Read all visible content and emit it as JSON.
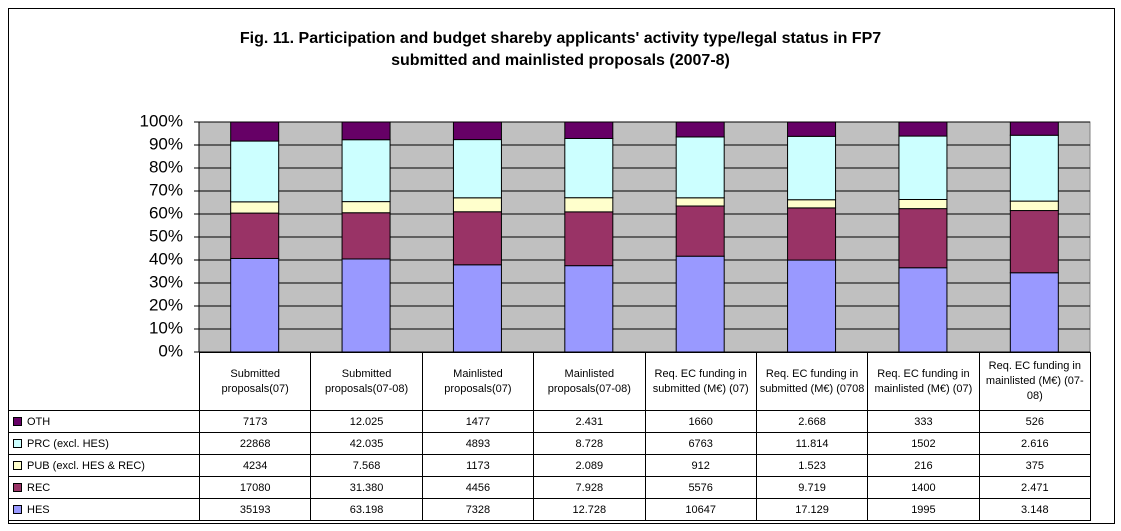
{
  "chart_data": {
    "type": "bar",
    "stack": "percent",
    "title": [
      "Fig. 11. Participation and budget shareby applicants' activity type/legal status in FP7",
      "submitted and mainlisted proposals (2007-8)"
    ],
    "categories": [
      "Submitted proposals(07)",
      "Submitted proposals(07-08)",
      "Mainlisted proposals(07)",
      "Mainlisted proposals(07-08)",
      "Req. EC funding in submitted (M€) (07)",
      "Req. EC funding in submitted (M€) (0708",
      "Req. EC funding in mainlisted (M€) (07)",
      "Req. EC funding in mainlisted (M€) (07-08)"
    ],
    "series": [
      {
        "name": "OTH",
        "color": "#660066",
        "values": [
          7173,
          12025,
          1477,
          2431,
          1660,
          2668,
          333,
          526
        ],
        "value_labels": [
          "7173",
          "12.025",
          "1477",
          "2.431",
          "1660",
          "2.668",
          "333",
          "526"
        ]
      },
      {
        "name": "PRC (excl. HES)",
        "color": "#ccffff",
        "values": [
          22868,
          42035,
          4893,
          8728,
          6763,
          11814,
          1502,
          2616
        ],
        "value_labels": [
          "22868",
          "42.035",
          "4893",
          "8.728",
          "6763",
          "11.814",
          "1502",
          "2.616"
        ]
      },
      {
        "name": "PUB (excl. HES & REC)",
        "color": "#ffffcc",
        "values": [
          4234,
          7568,
          1173,
          2089,
          912,
          1523,
          216,
          375
        ],
        "value_labels": [
          "4234",
          "7.568",
          "1173",
          "2.089",
          "912",
          "1.523",
          "216",
          "375"
        ]
      },
      {
        "name": "REC",
        "color": "#993366",
        "values": [
          17080,
          31380,
          4456,
          7928,
          5576,
          9719,
          1400,
          2471
        ],
        "value_labels": [
          "17080",
          "31.380",
          "4456",
          "7.928",
          "5576",
          "9.719",
          "1400",
          "2.471"
        ]
      },
      {
        "name": "HES",
        "color": "#9999ff",
        "values": [
          35193,
          63198,
          7328,
          12728,
          10647,
          17129,
          1995,
          3148
        ],
        "value_labels": [
          "35193",
          "63.198",
          "7328",
          "12.728",
          "10647",
          "17.129",
          "1995",
          "3.148"
        ]
      }
    ],
    "ylim": [
      0,
      100
    ],
    "yticks": [
      {
        "value": 0,
        "label": "0%"
      },
      {
        "value": 10,
        "label": "10%"
      },
      {
        "value": 20,
        "label": "20%"
      },
      {
        "value": 30,
        "label": "30%"
      },
      {
        "value": 40,
        "label": "40%"
      },
      {
        "value": 50,
        "label": "50%"
      },
      {
        "value": 60,
        "label": "60%"
      },
      {
        "value": 70,
        "label": "70%"
      },
      {
        "value": 80,
        "label": "80%"
      },
      {
        "value": 90,
        "label": "90%"
      },
      {
        "value": 100,
        "label": "100%"
      }
    ],
    "grid": true,
    "plot_background": "#c0c0c0"
  }
}
